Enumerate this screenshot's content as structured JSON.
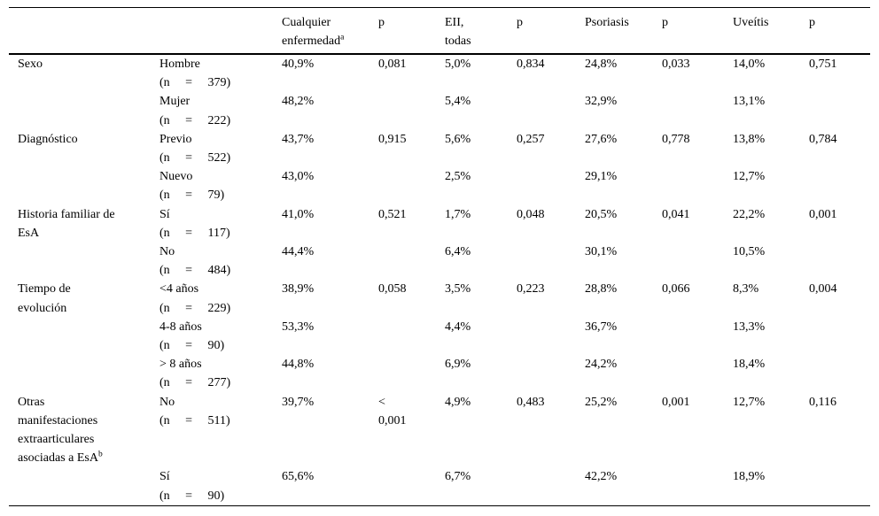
{
  "colors": {
    "background": "#ffffff",
    "text": "#000000",
    "rule": "#000000"
  },
  "table": {
    "headers": [
      {
        "text": ""
      },
      {
        "text": ""
      },
      {
        "text": "Cualquier\nenfermedad",
        "sup": "a"
      },
      {
        "text": "p"
      },
      {
        "text": "EII,\ntodas"
      },
      {
        "text": "p"
      },
      {
        "text": "Psoriasis"
      },
      {
        "text": "p"
      },
      {
        "text": "Uveítis"
      },
      {
        "text": "p"
      }
    ],
    "rows": [
      {
        "cat": "Sexo",
        "sub": "Hombre",
        "n": "(n = 379)",
        "vals": [
          "40,9%",
          "0,081",
          "5,0%",
          "0,834",
          "24,8%",
          "0,033",
          "14,0%",
          "0,751"
        ]
      },
      {
        "cat": "",
        "sub": "Mujer",
        "n": "(n = 222)",
        "vals": [
          "48,2%",
          "",
          "5,4%",
          "",
          "32,9%",
          "",
          "13,1%",
          ""
        ]
      },
      {
        "cat": "Diagnóstico",
        "sub": "Previo",
        "n": "(n = 522)",
        "vals": [
          "43,7%",
          "0,915",
          "5,6%",
          "0,257",
          "27,6%",
          "0,778",
          "13,8%",
          "0,784"
        ]
      },
      {
        "cat": "",
        "sub": "Nuevo",
        "n": "(n = 79)",
        "vals": [
          "43,0%",
          "",
          "2,5%",
          "",
          "29,1%",
          "",
          "12,7%",
          ""
        ]
      },
      {
        "cat": "Historia familiar de\nEsA",
        "sub": "Sí",
        "n": "(n = 117)",
        "vals": [
          "41,0%",
          "0,521",
          "1,7%",
          "0,048",
          "20,5%",
          "0,041",
          "22,2%",
          "0,001"
        ]
      },
      {
        "cat": "",
        "sub": "No",
        "n": "(n = 484)",
        "vals": [
          "44,4%",
          "",
          "6,4%",
          "",
          "30,1%",
          "",
          "10,5%",
          ""
        ]
      },
      {
        "cat": "Tiempo de\nevolución",
        "sub": "<4 años",
        "n": "(n = 229)",
        "vals": [
          "38,9%",
          "0,058",
          "3,5%",
          "0,223",
          "28,8%",
          "0,066",
          "8,3%",
          "0,004"
        ]
      },
      {
        "cat": "",
        "sub": "4-8 años",
        "n": "(n = 90)",
        "vals": [
          "53,3%",
          "",
          "4,4%",
          "",
          "36,7%",
          "",
          "13,3%",
          ""
        ]
      },
      {
        "cat": "",
        "sub": "> 8 años",
        "n": "(n = 277)",
        "vals": [
          "44,8%",
          "",
          "6,9%",
          "",
          "24,2%",
          "",
          "18,4%",
          ""
        ]
      },
      {
        "cat": "Otras\nmanifestaciones\nextraarticulares\nasociadas a EsA",
        "cat_sup": "b",
        "sub": "No",
        "n": "(n = 511)",
        "vals": [
          "39,7%",
          "<\n0,001",
          "4,9%",
          "0,483",
          "25,2%",
          "0,001",
          "12,7%",
          "0,116"
        ]
      },
      {
        "cat": "",
        "sub": "Sí",
        "n": "(n = 90)",
        "vals": [
          "65,6%",
          "",
          "6,7%",
          "",
          "42,2%",
          "",
          "18,9%",
          ""
        ]
      }
    ]
  }
}
